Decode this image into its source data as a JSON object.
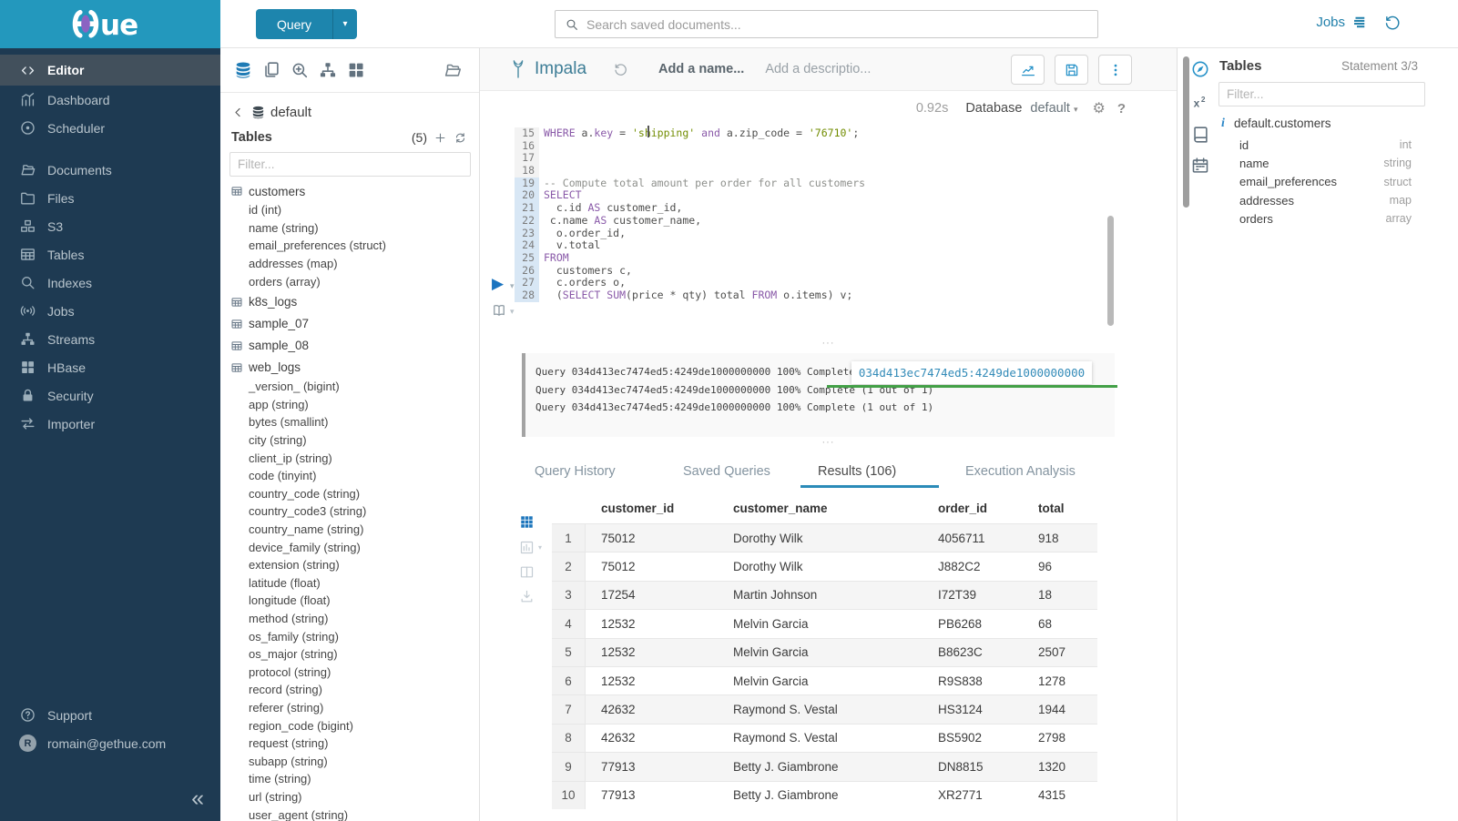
{
  "brand": {
    "name": "Hue",
    "logo_suffix": "ue"
  },
  "glyphs": {
    "caret_down": "▾",
    "play": "▶",
    "dots_handle": "···",
    "collapse": "«",
    "gear": "⚙",
    "help": "?"
  },
  "colors": {
    "brand_teal": "#2398bd",
    "sidebar_navy": "#1e3a52",
    "accent_blue": "#2180ab",
    "button_blue": "#1d85ad",
    "keyword_purple": "#8959a8",
    "string_olive": "#718c00",
    "comment_gray": "#8e908c",
    "success_green": "#43a047",
    "tab_underline": "#2b8bb8",
    "statement_gutter": "#d8e7f5"
  },
  "sidebar": {
    "items": [
      {
        "label": "Editor",
        "icon": "code-icon",
        "active": true
      },
      {
        "label": "Dashboard",
        "icon": "dashboard-icon"
      },
      {
        "label": "Scheduler",
        "icon": "scheduler-icon"
      },
      {
        "divider": true
      },
      {
        "label": "Documents",
        "icon": "documents-icon"
      },
      {
        "label": "Files",
        "icon": "folder-icon"
      },
      {
        "label": "S3",
        "icon": "cubes-icon"
      },
      {
        "label": "Tables",
        "icon": "table-grid-icon"
      },
      {
        "label": "Indexes",
        "icon": "magnifier-icon"
      },
      {
        "label": "Jobs",
        "icon": "broadcast-icon"
      },
      {
        "label": "Streams",
        "icon": "sitemap-icon"
      },
      {
        "label": "HBase",
        "icon": "blocks-icon"
      },
      {
        "label": "Security",
        "icon": "lock-icon"
      },
      {
        "label": "Importer",
        "icon": "transfer-icon"
      }
    ],
    "support_label": "Support",
    "user_email": "romain@gethue.com",
    "user_initial": "R"
  },
  "topbar": {
    "query_button_label": "Query",
    "search_placeholder": "Search saved documents...",
    "jobs_label": "Jobs"
  },
  "assist": {
    "toolbar_icons": [
      "database-icon",
      "copy-icon",
      "zoom-in-icon",
      "sitemap-icon",
      "blocks-icon",
      "folder-open-icon"
    ],
    "database": "default",
    "tables_label": "Tables",
    "tables_count": "(5)",
    "filter_placeholder": "Filter...",
    "tables": [
      {
        "name": "customers",
        "columns": [
          "id (int)",
          "name (string)",
          "email_preferences (struct)",
          "addresses (map)",
          "orders (array)"
        ]
      },
      {
        "name": "k8s_logs",
        "columns": []
      },
      {
        "name": "sample_07",
        "columns": []
      },
      {
        "name": "sample_08",
        "columns": []
      },
      {
        "name": "web_logs",
        "columns": [
          "_version_ (bigint)",
          "app (string)",
          "bytes (smallint)",
          "city (string)",
          "client_ip (string)",
          "code (tinyint)",
          "country_code (string)",
          "country_code3 (string)",
          "country_name (string)",
          "device_family (string)",
          "extension (string)",
          "latitude (float)",
          "longitude (float)",
          "method (string)",
          "os_family (string)",
          "os_major (string)",
          "protocol (string)",
          "record (string)",
          "referer (string)",
          "region_code (bigint)",
          "request (string)",
          "subapp (string)",
          "time (string)",
          "url (string)",
          "user_agent (string)"
        ]
      }
    ]
  },
  "editor": {
    "engine": "Impala",
    "name_placeholder": "Add a name...",
    "description_placeholder": "Add a descriptio...",
    "execution_time": "0.92s",
    "database_label": "Database",
    "database_value": "default",
    "action_icons": [
      "chart-line-icon",
      "save-icon",
      "kebab-icon"
    ],
    "code_lines": [
      {
        "n": 15,
        "hl": false,
        "seg": [
          [
            "k",
            "WHERE"
          ],
          [
            "p",
            " a."
          ],
          [
            "k",
            "key"
          ],
          [
            "p",
            " = "
          ],
          [
            "s",
            "'shipping'"
          ],
          [
            "p",
            " "
          ],
          [
            "k",
            "and"
          ],
          [
            "p",
            " a.zip_code = "
          ],
          [
            "s",
            "'76710'"
          ],
          [
            "p",
            ";"
          ]
        ]
      },
      {
        "n": 16,
        "hl": false,
        "seg": []
      },
      {
        "n": 17,
        "hl": false,
        "seg": []
      },
      {
        "n": 18,
        "hl": false,
        "seg": []
      },
      {
        "n": 19,
        "hl": true,
        "seg": [
          [
            "c",
            "-- Compute total amount per order for all customers"
          ]
        ]
      },
      {
        "n": 20,
        "hl": true,
        "seg": [
          [
            "k",
            "SELECT"
          ]
        ]
      },
      {
        "n": 21,
        "hl": true,
        "seg": [
          [
            "p",
            "  c.id "
          ],
          [
            "k",
            "AS"
          ],
          [
            "p",
            " customer_id,"
          ]
        ]
      },
      {
        "n": 22,
        "hl": true,
        "seg": [
          [
            "p",
            " c.name "
          ],
          [
            "k",
            "AS"
          ],
          [
            "p",
            " customer_name,"
          ]
        ]
      },
      {
        "n": 23,
        "hl": true,
        "seg": [
          [
            "p",
            "  o.order_id,"
          ]
        ]
      },
      {
        "n": 24,
        "hl": true,
        "seg": [
          [
            "p",
            "  v.total"
          ]
        ]
      },
      {
        "n": 25,
        "hl": true,
        "seg": [
          [
            "k",
            "FROM"
          ]
        ]
      },
      {
        "n": 26,
        "hl": true,
        "seg": [
          [
            "p",
            "  customers c,"
          ]
        ]
      },
      {
        "n": 27,
        "hl": true,
        "seg": [
          [
            "p",
            "  c.orders o,"
          ]
        ]
      },
      {
        "n": 28,
        "hl": true,
        "seg": [
          [
            "p",
            "  ("
          ],
          [
            "k",
            "SELECT"
          ],
          [
            "p",
            " "
          ],
          [
            "k",
            "SUM"
          ],
          [
            "p",
            "(price * qty) total "
          ],
          [
            "k",
            "FROM"
          ],
          [
            "p",
            " o.items) v;"
          ]
        ]
      }
    ]
  },
  "log": {
    "lines": [
      "Query 034d413ec7474ed5:4249de1000000000 100% Complete (1 out of 1)",
      "Query 034d413ec7474ed5:4249de1000000000 100% Complete (1 out of 1)",
      "Query 034d413ec7474ed5:4249de1000000000 100% Complete (1 out of 1)"
    ],
    "job_link": "034d413ec7474ed5:4249de1000000000"
  },
  "tabs": [
    {
      "label": "Query History",
      "active": false
    },
    {
      "label": "Saved Queries",
      "active": false
    },
    {
      "label": "Results (106)",
      "active": true
    },
    {
      "label": "Execution Analysis",
      "active": false
    }
  ],
  "results": {
    "view_icons": [
      "grid9-icon",
      "chart-bars-icon",
      "columns-icon",
      "download-icon"
    ],
    "columns": [
      "customer_id",
      "customer_name",
      "order_id",
      "total"
    ],
    "rows": [
      [
        "75012",
        "Dorothy Wilk",
        "4056711",
        "918"
      ],
      [
        "75012",
        "Dorothy Wilk",
        "J882C2",
        "96"
      ],
      [
        "17254",
        "Martin Johnson",
        "I72T39",
        "18"
      ],
      [
        "12532",
        "Melvin Garcia",
        "PB6268",
        "68"
      ],
      [
        "12532",
        "Melvin Garcia",
        "B8623C",
        "2507"
      ],
      [
        "12532",
        "Melvin Garcia",
        "R9S838",
        "1278"
      ],
      [
        "42632",
        "Raymond S. Vestal",
        "HS3124",
        "1944"
      ],
      [
        "42632",
        "Raymond S. Vestal",
        "BS5902",
        "2798"
      ],
      [
        "77913",
        "Betty J. Giambrone",
        "DN8815",
        "1320"
      ],
      [
        "77913",
        "Betty J. Giambrone",
        "XR2771",
        "4315"
      ]
    ]
  },
  "right_strip": {
    "icons": [
      "compass-icon",
      "superscript-icon",
      "book-icon",
      "calendar-icon"
    ]
  },
  "right_panel": {
    "title": "Tables",
    "statement": "Statement 3/3",
    "filter_placeholder": "Filter...",
    "table_name": "default.customers",
    "columns": [
      {
        "name": "id",
        "type": "int"
      },
      {
        "name": "name",
        "type": "string"
      },
      {
        "name": "email_preferences",
        "type": "struct"
      },
      {
        "name": "addresses",
        "type": "map"
      },
      {
        "name": "orders",
        "type": "array"
      }
    ]
  }
}
